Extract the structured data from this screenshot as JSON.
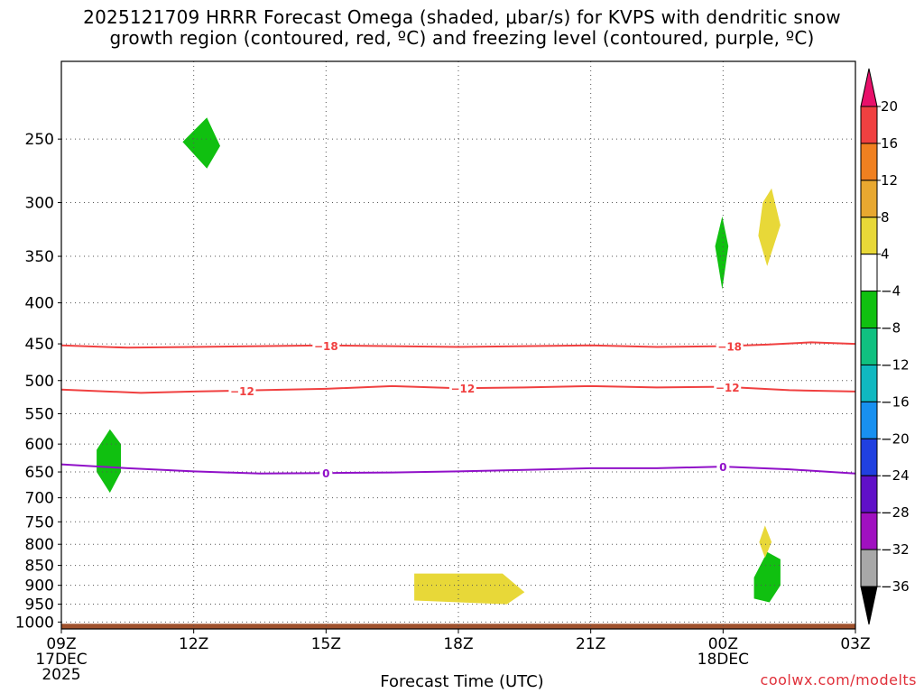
{
  "chart_data": {
    "type": "heatmap",
    "title_line1": "2025121709 HRRR Forecast Omega (shaded, μbar/s) for KVPS with dendritic snow",
    "title_line2": "growth region (contoured, red, ºC) and freezing level (contoured, purple, ºC)",
    "xlabel": "Forecast Time (UTC)",
    "credit": "coolwx.com/modelts",
    "x_range_hours": [
      0,
      18
    ],
    "x_ticks": [
      {
        "hour": 0,
        "label": "09Z",
        "sub1": "17DEC",
        "sub2": "2025"
      },
      {
        "hour": 3,
        "label": "12Z"
      },
      {
        "hour": 6,
        "label": "15Z"
      },
      {
        "hour": 9,
        "label": "18Z"
      },
      {
        "hour": 12,
        "label": "21Z"
      },
      {
        "hour": 15,
        "label": "00Z",
        "sub1": "18DEC"
      },
      {
        "hour": 18,
        "label": "03Z"
      }
    ],
    "y_range_mb": [
      1020,
      200
    ],
    "y_ticks": [
      250,
      300,
      350,
      400,
      450,
      500,
      550,
      600,
      650,
      700,
      750,
      800,
      850,
      900,
      950,
      1000
    ],
    "y_tick_labels": [
      "250",
      "300",
      "350",
      "400",
      "450",
      "500",
      "550",
      "600",
      "650",
      "700",
      "750",
      "800",
      "850",
      "900",
      "950",
      "1000"
    ],
    "colorbar": {
      "labels": [
        "20",
        "16",
        "12",
        "8",
        "4",
        "−4",
        "−8",
        "−12",
        "−16",
        "−20",
        "−24",
        "−28",
        "−32",
        "−36"
      ],
      "colors": [
        "#e8106a",
        "#f04040",
        "#f08020",
        "#e8a830",
        "#e8d838",
        "#ffffff",
        "#10c010",
        "#10c080",
        "#10b8c0",
        "#1890f0",
        "#2040e0",
        "#6010c8",
        "#a010c0",
        "#a8a8a8",
        "#000000"
      ]
    },
    "contours": [
      {
        "name": "dgz-minus18",
        "color": "#f04040",
        "label": "−18",
        "points": [
          [
            0,
            452
          ],
          [
            1.5,
            455
          ],
          [
            3,
            454
          ],
          [
            4.5,
            453
          ],
          [
            6,
            452
          ],
          [
            7.5,
            453
          ],
          [
            9,
            454
          ],
          [
            10.5,
            453
          ],
          [
            12,
            452
          ],
          [
            13.5,
            454
          ],
          [
            15,
            453
          ],
          [
            16,
            451
          ],
          [
            17,
            448
          ],
          [
            18,
            450
          ]
        ],
        "label_at": [
          6,
          15.15
        ]
      },
      {
        "name": "dgz-minus12",
        "color": "#f04040",
        "label": "−12",
        "points": [
          [
            0,
            513
          ],
          [
            1.8,
            518
          ],
          [
            3,
            516
          ],
          [
            4.5,
            514
          ],
          [
            6,
            512
          ],
          [
            7.5,
            508
          ],
          [
            9,
            511
          ],
          [
            10.5,
            510
          ],
          [
            12,
            508
          ],
          [
            13.5,
            510
          ],
          [
            15,
            509
          ],
          [
            16.5,
            514
          ],
          [
            18,
            516
          ]
        ],
        "label_at": [
          4.1,
          9.1,
          15.1
        ]
      },
      {
        "name": "freezing-level-0",
        "color": "#9010c8",
        "label": "0",
        "points": [
          [
            0,
            636
          ],
          [
            1.5,
            643
          ],
          [
            3,
            649
          ],
          [
            4.5,
            653
          ],
          [
            6,
            652
          ],
          [
            7.5,
            651
          ],
          [
            9,
            649
          ],
          [
            10.5,
            646
          ],
          [
            12,
            643
          ],
          [
            13.5,
            643
          ],
          [
            15,
            640
          ],
          [
            16.5,
            645
          ],
          [
            18,
            653
          ]
        ],
        "label_at": [
          6,
          15
        ]
      }
    ],
    "shaded_regions": [
      {
        "name": "omega-neg4-to-neg8",
        "color": "#10c010",
        "points": [
          [
            1.1,
            575
          ],
          [
            1.35,
            600
          ],
          [
            1.35,
            650
          ],
          [
            1.1,
            690
          ],
          [
            0.8,
            650
          ],
          [
            0.8,
            610
          ]
        ]
      },
      {
        "name": "omega-neg4-to-neg8",
        "color": "#10c010",
        "points": [
          [
            3.3,
            235
          ],
          [
            3.6,
            255
          ],
          [
            3.3,
            272
          ],
          [
            2.75,
            252
          ]
        ]
      },
      {
        "name": "omega-neg4-to-neg8",
        "color": "#10c010",
        "points": [
          [
            14.98,
            312
          ],
          [
            15.12,
            340
          ],
          [
            14.98,
            385
          ],
          [
            14.82,
            340
          ]
        ]
      },
      {
        "name": "omega-neg4-to-neg8",
        "color": "#10c010",
        "points": [
          [
            16,
            818
          ],
          [
            16.3,
            835
          ],
          [
            16.3,
            900
          ],
          [
            16.05,
            945
          ],
          [
            15.7,
            935
          ],
          [
            15.7,
            880
          ]
        ]
      },
      {
        "name": "omega-4-to-8",
        "color": "#e8d838",
        "points": [
          [
            16.1,
            288
          ],
          [
            16.3,
            320
          ],
          [
            16.0,
            360
          ],
          [
            15.8,
            330
          ],
          [
            15.9,
            300
          ]
        ]
      },
      {
        "name": "omega-4-to-8",
        "color": "#e8d838",
        "points": [
          [
            15.95,
            758
          ],
          [
            16.1,
            795
          ],
          [
            15.95,
            832
          ],
          [
            15.82,
            795
          ]
        ]
      },
      {
        "name": "omega-4-to-8",
        "color": "#e8d838",
        "points": [
          [
            8.0,
            870
          ],
          [
            10.0,
            870
          ],
          [
            10.5,
            918
          ],
          [
            10.1,
            950
          ],
          [
            8.0,
            940
          ]
        ]
      }
    ],
    "terrain": {
      "name": "ground",
      "color": "#a0522d",
      "top_mb": 1005
    }
  }
}
